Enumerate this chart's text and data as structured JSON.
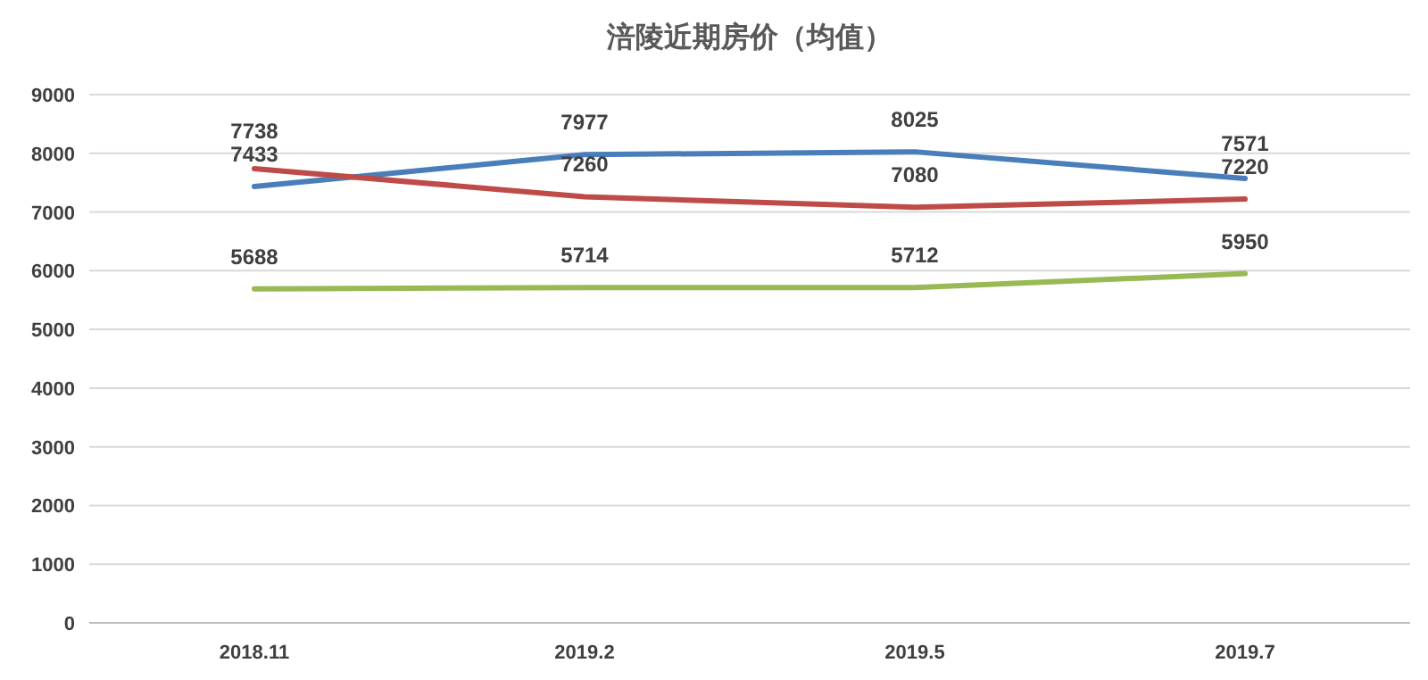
{
  "chart_data": {
    "type": "line",
    "title": "涪陵近期房价（均值）",
    "categories": [
      "2018.11",
      "2019.2",
      "2019.5",
      "2019.7"
    ],
    "series": [
      {
        "color": "#4a7ebb",
        "values": [
          7433,
          7977,
          8025,
          7571
        ]
      },
      {
        "color": "#be4b48",
        "values": [
          7738,
          7260,
          7080,
          7220
        ]
      },
      {
        "color": "#98b954",
        "values": [
          5688,
          5714,
          5712,
          5950
        ]
      }
    ],
    "ylim": [
      0,
      9000
    ],
    "yticks": [
      0,
      1000,
      2000,
      3000,
      4000,
      5000,
      6000,
      7000,
      8000,
      9000
    ],
    "grid": "y",
    "data_labels": true,
    "marker": "none",
    "line_style": "solid"
  }
}
